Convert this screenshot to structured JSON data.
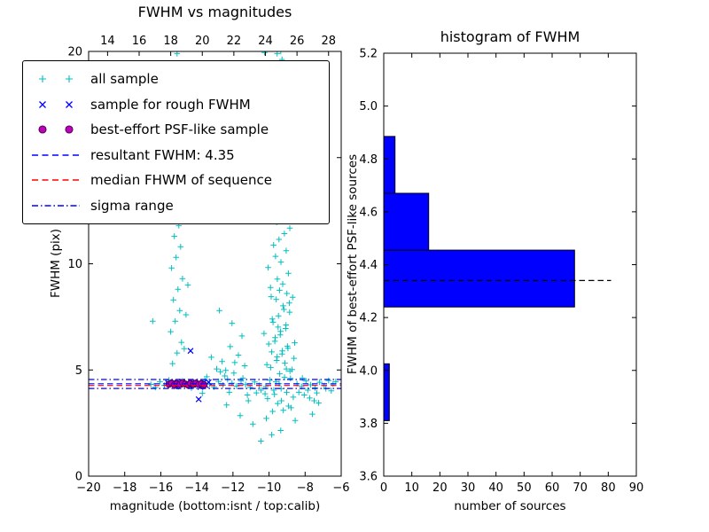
{
  "chart_data": [
    {
      "type": "scatter",
      "title": "FWHM vs magnitudes",
      "xlabel": "magnitude (bottom:isnt / top:calib)",
      "ylabel": "FWHM (pix)",
      "xlim": [
        -20,
        -6
      ],
      "xlim_top": [
        12.8,
        28.8
      ],
      "ylim": [
        0,
        20
      ],
      "grid": false,
      "legend_position": "upper left",
      "xticks_bottom": {
        "values": [
          -20,
          -18,
          -16,
          -14,
          -12,
          -10,
          -8,
          -6
        ],
        "labels": [
          "−20",
          "−18",
          "−16",
          "−14",
          "−12",
          "−10",
          "−8",
          "−6"
        ]
      },
      "xticks_top": {
        "values": [
          14,
          16,
          18,
          20,
          22,
          24,
          26,
          28
        ],
        "labels": [
          "14",
          "16",
          "18",
          "20",
          "22",
          "24",
          "26",
          "28"
        ]
      },
      "yticks": {
        "values": [
          0,
          5,
          10,
          15,
          20
        ],
        "labels": [
          "0",
          "5",
          "10",
          "15",
          "20"
        ]
      },
      "series": [
        {
          "name": "all sample",
          "marker": "plus",
          "color": "#00bfbf",
          "points": [
            -9.8,
            3.05,
            -9.52,
            3.42,
            -9.21,
            3.1,
            -10.08,
            3.65,
            -8.92,
            3.3,
            -9.7,
            3.85,
            -9.33,
            4.12,
            -9.02,
            3.95,
            -9.62,
            4.45,
            -10.18,
            4.22,
            -8.81,
            4.6,
            -9.41,
            4.82,
            -9.91,
            5.12,
            -9.12,
            5.32,
            -8.72,
            5.02,
            -9.55,
            5.62,
            -9.26,
            5.9,
            -10.02,
            6.22,
            -8.95,
            6.02,
            -9.66,
            6.52,
            -9.36,
            6.82,
            -9.06,
            7.12,
            -9.82,
            7.4,
            -9.5,
            7.02,
            -8.86,
            7.72,
            -9.22,
            8.02,
            -9.6,
            8.32,
            -9.01,
            8.6,
            -9.92,
            8.88,
            -9.31,
            3.55,
            -8.66,
            3.72,
            -9.74,
            4.05,
            -9.44,
            4.35,
            -9.14,
            4.65,
            -8.84,
            4.95,
            -10.12,
            5.25,
            -9.58,
            5.45,
            -9.28,
            5.75,
            -8.98,
            6.12,
            -9.68,
            6.35,
            -9.38,
            6.65,
            -9.08,
            6.95,
            -9.78,
            7.25,
            -9.48,
            7.55,
            -9.18,
            7.85,
            -8.88,
            8.15,
            -9.88,
            8.45,
            -9.42,
            8.75,
            -8.78,
            3.22,
            -10.22,
            3.88,
            -9.96,
            4.52,
            -8.62,
            5.55,
            -9.04,
            5.05,
            -10.28,
            6.72,
            -8.58,
            6.28,
            -9.85,
            5.85,
            -8.69,
            8.42,
            -9.24,
            9.05,
            -9.54,
            9.28,
            -8.93,
            9.55,
            -10.05,
            9.82,
            -9.34,
            10.08,
            -9.64,
            10.35,
            -9.05,
            10.62,
            -9.75,
            10.88,
            -9.45,
            11.15,
            -9.15,
            11.42,
            -8.85,
            11.68,
            -9.58,
            11.95,
            -9.25,
            12.22,
            -9.48,
            12.55,
            -9.18,
            12.88,
            -9.78,
            13.22,
            -9.38,
            13.55,
            -9.08,
            13.88,
            -9.62,
            14.22,
            -9.28,
            14.55,
            -8.98,
            14.88,
            -9.52,
            15.22,
            -9.22,
            15.55,
            -9.72,
            15.88,
            -9.42,
            16.22,
            -9.12,
            16.55,
            -9.58,
            16.88,
            -9.32,
            17.22,
            -9.02,
            17.55,
            -9.68,
            17.88,
            -9.38,
            18.22,
            -9.48,
            18.62,
            -9.18,
            18.95,
            -9.88,
            19.28,
            -9.28,
            19.62,
            -9.55,
            19.9,
            -10.25,
            19.95,
            -9.35,
            20,
            -10.35,
            13.1,
            -10.15,
            14.4,
            -8.75,
            12.4,
            -8.65,
            13.4,
            -10.45,
            16.3,
            -16.55,
            4.32,
            -16.3,
            4.18,
            -16.05,
            4.45,
            -15.8,
            4.28,
            -15.55,
            4.52,
            -15.3,
            4.35,
            -15.05,
            4.22,
            -14.8,
            4.48,
            -14.55,
            4.3,
            -14.3,
            4.15,
            -14.05,
            4.42,
            -13.8,
            4.26,
            -13.55,
            4.5,
            -13.3,
            4.33,
            -13.05,
            4.2,
            -12.8,
            4.46,
            -12.55,
            4.29,
            -12.3,
            4.55,
            -12.05,
            4.38,
            -11.8,
            4.24,
            -11.55,
            4.48,
            -11.3,
            4.31,
            -11.05,
            4.18,
            -10.8,
            4.44,
            -10.55,
            4.27,
            -12.45,
            4.72,
            -11.95,
            4.85,
            -11.45,
            4.62,
            -12.7,
            4.92,
            -13.45,
            4.68,
            -8.45,
            4.35,
            -8.2,
            4.22,
            -7.95,
            4.48,
            -7.7,
            4.3,
            -7.45,
            4.16,
            -7.2,
            4.42,
            -6.95,
            4.26,
            -6.7,
            4.5,
            -6.45,
            4.34,
            -6.3,
            4.45,
            -8.35,
            3.95,
            -8.05,
            3.82,
            -7.75,
            3.68,
            -7.5,
            3.55,
            -7.25,
            3.45,
            -8.15,
            4.62,
            -7.85,
            4.05,
            -7.35,
            3.92,
            -6.85,
            4.12,
            -6.55,
            4.02,
            -10.45,
            4.05,
            -10.7,
            3.92,
            -11.2,
            3.82,
            -12.2,
            3.95,
            -13.7,
            3.9,
            -15.35,
            5.3,
            -15.1,
            5.8,
            -14.85,
            6.3,
            -15.45,
            6.8,
            -15.2,
            7.3,
            -14.95,
            7.8,
            -15.3,
            8.3,
            -15.05,
            8.8,
            -14.8,
            9.3,
            -15.4,
            9.8,
            -15.15,
            10.3,
            -14.9,
            10.8,
            -15.25,
            11.3,
            -15.0,
            11.8,
            -15.5,
            12.3,
            -15.2,
            12.8,
            -14.7,
            6.0,
            -14.6,
            7.6,
            -14.5,
            9.0,
            -15.55,
            13.1,
            -16.45,
            7.3,
            -10.45,
            1.65,
            -10.9,
            2.45,
            -9.35,
            2.15,
            -8.55,
            2.62,
            -11.6,
            2.85,
            -7.6,
            2.92,
            -10.15,
            2.72,
            -9.85,
            1.95,
            -12.35,
            3.35,
            -11.15,
            3.55,
            -12.6,
            5.4,
            -12.9,
            5.05,
            -11.7,
            5.7,
            -12.15,
            6.1,
            -11.35,
            5.2,
            -13.2,
            5.6,
            -12.4,
            4.98,
            -11.9,
            5.35,
            -15.1,
            19.9,
            -12.05,
            7.2,
            -11.5,
            6.6,
            -12.75,
            7.8
          ]
        },
        {
          "name": "sample for rough FWHM",
          "marker": "x",
          "color": "#0000ff",
          "points": [
            -15.6,
            4.38,
            -15.45,
            4.28,
            -15.3,
            4.42,
            -15.15,
            4.22,
            -15.0,
            4.35,
            -14.85,
            4.45,
            -14.7,
            4.3,
            -14.55,
            4.4,
            -14.4,
            4.25,
            -14.25,
            4.35,
            -14.1,
            4.45,
            -13.95,
            4.3,
            -13.8,
            4.2,
            -13.65,
            4.38,
            -13.5,
            4.28,
            -13.35,
            4.42,
            -14.35,
            5.9,
            -13.9,
            3.62
          ]
        },
        {
          "name": "best-effort PSF-like sample",
          "marker": "circle",
          "color": "#bf00bf",
          "edge": "#550055",
          "points": [
            -15.55,
            4.33,
            -15.4,
            4.38,
            -15.25,
            4.3,
            -15.1,
            4.36,
            -14.95,
            4.32,
            -14.8,
            4.4,
            -14.65,
            4.34,
            -14.5,
            4.3,
            -14.35,
            4.37,
            -14.2,
            4.33,
            -14.05,
            4.38,
            -13.9,
            4.32,
            -13.75,
            4.36,
            -13.6,
            4.3
          ]
        }
      ],
      "lines": [
        {
          "label": "resultant FWHM: 4.35",
          "y": 4.35,
          "style": "dashed",
          "color": "#0000ff"
        },
        {
          "label": "median FHWM of sequence",
          "y": 4.27,
          "style": "dashed",
          "color": "#ff0000"
        },
        {
          "label": "sigma range",
          "y": [
            4.13,
            4.55
          ],
          "style": "dashdot",
          "color": "#0000ff"
        }
      ],
      "legend": {
        "entries": [
          {
            "label": "all sample",
            "kind": "plus",
            "color": "#00bfbf"
          },
          {
            "label": "sample for rough FWHM",
            "kind": "x",
            "color": "#0000ff"
          },
          {
            "label": "best-effort PSF-like sample",
            "kind": "circle",
            "color": "#bf00bf",
            "edge": "#550055"
          },
          {
            "label": "resultant FWHM: 4.35",
            "kind": "dashed",
            "color": "#0000ff"
          },
          {
            "label": "median FHWM of sequence",
            "kind": "dashed",
            "color": "#ff0000"
          },
          {
            "label": "sigma range",
            "kind": "dashdot",
            "color": "#0000ff"
          }
        ]
      }
    },
    {
      "type": "bar",
      "orientation": "horizontal",
      "title": "histogram of FWHM",
      "xlabel": "number of sources",
      "ylabel": "FWHM of best-effort PSF-like sources",
      "xlim": [
        0,
        90
      ],
      "ylim": [
        3.6,
        5.2
      ],
      "grid": false,
      "xticks": {
        "values": [
          0,
          10,
          20,
          30,
          40,
          50,
          60,
          70,
          80,
          90
        ],
        "labels": [
          "0",
          "10",
          "20",
          "30",
          "40",
          "50",
          "60",
          "70",
          "80",
          "90"
        ]
      },
      "yticks": {
        "values": [
          3.6,
          3.8,
          4.0,
          4.2,
          4.4,
          4.6,
          4.8,
          5.0,
          5.2
        ],
        "labels": [
          "3.6",
          "3.8",
          "4.0",
          "4.2",
          "4.4",
          "4.6",
          "4.8",
          "5.0",
          "5.2"
        ]
      },
      "bin_edges": [
        3.81,
        4.025,
        4.24,
        4.455,
        4.67,
        4.885
      ],
      "counts": [
        2,
        0,
        68,
        16,
        4
      ],
      "bar_color": "#0000ff",
      "median_line": {
        "y": 4.34,
        "x_start": 0,
        "x_end": 81,
        "style": "dashed",
        "color": "#000000"
      }
    }
  ]
}
